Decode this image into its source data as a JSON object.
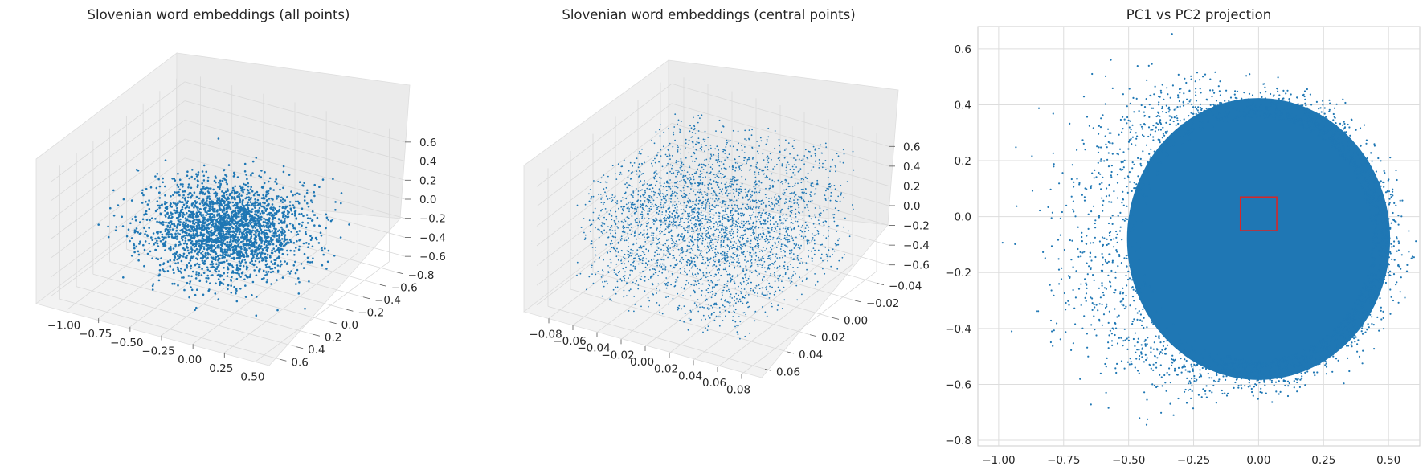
{
  "chart_data": [
    {
      "type": "scatter",
      "title": "Slovenian word embeddings (all points)",
      "projection": "3d",
      "xlabel": "",
      "ylabel": "",
      "zlabel": "",
      "xlim": [
        -1.05,
        0.62
      ],
      "ylim": [
        -0.84,
        0.66
      ],
      "zlim": [
        -0.72,
        0.68
      ],
      "x_ticks": [
        "−1.00",
        "−0.75",
        "−0.50",
        "−0.25",
        "0.00",
        "0.25",
        "0.50"
      ],
      "y_ticks": [
        "−0.8",
        "−0.6",
        "−0.4",
        "−0.2",
        "0.0",
        "0.2",
        "0.4",
        "0.6"
      ],
      "z_ticks": [
        "−0.6",
        "−0.4",
        "−0.2",
        "0.0",
        "0.2",
        "0.4",
        "0.6"
      ],
      "distribution": {
        "center": [
          0.0,
          -0.1,
          -0.1
        ],
        "spread": [
          0.26,
          0.24,
          0.2
        ]
      },
      "color": "#1f77b4",
      "grid": true
    },
    {
      "type": "scatter",
      "title": "Slovenian word embeddings (central points)",
      "projection": "3d",
      "xlabel": "",
      "ylabel": "",
      "zlabel": "",
      "xlim": [
        -0.08,
        0.08
      ],
      "ylim": [
        -0.05,
        0.07
      ],
      "zlim": [
        -0.7,
        0.65
      ],
      "x_ticks": [
        "−0.08",
        "−0.06",
        "−0.04",
        "−0.02",
        "0.00",
        "0.02",
        "0.04",
        "0.06",
        "0.08"
      ],
      "y_ticks": [
        "−0.04",
        "−0.02",
        "0.00",
        "0.02",
        "0.04",
        "0.06"
      ],
      "z_ticks": [
        "−0.6",
        "−0.4",
        "−0.2",
        "0.0",
        "0.2",
        "0.4",
        "0.6"
      ],
      "distribution": {
        "center": [
          0.0,
          0.0,
          0.0
        ],
        "spread": [
          0.07,
          0.05,
          0.28
        ]
      },
      "color": "#1f77b4",
      "grid": true
    },
    {
      "type": "scatter",
      "title": "PC1 vs PC2 projection",
      "xlabel": "",
      "ylabel": "",
      "xlim": [
        -1.08,
        0.62
      ],
      "ylim": [
        -0.82,
        0.68
      ],
      "x_ticks": [
        "−1.00",
        "−0.75",
        "−0.50",
        "−0.25",
        "0.00",
        "0.25",
        "0.50"
      ],
      "y_ticks": [
        "−0.8",
        "−0.6",
        "−0.4",
        "−0.2",
        "0.0",
        "0.2",
        "0.4",
        "0.6"
      ],
      "distribution": {
        "center": [
          0.0,
          -0.08
        ],
        "radius_x": 0.55,
        "radius_y": 0.56
      },
      "highlight_box": {
        "x": [
          -0.07,
          0.07
        ],
        "y": [
          -0.05,
          0.07
        ],
        "color": "#d62728"
      },
      "color": "#1f77b4",
      "grid": true
    }
  ]
}
